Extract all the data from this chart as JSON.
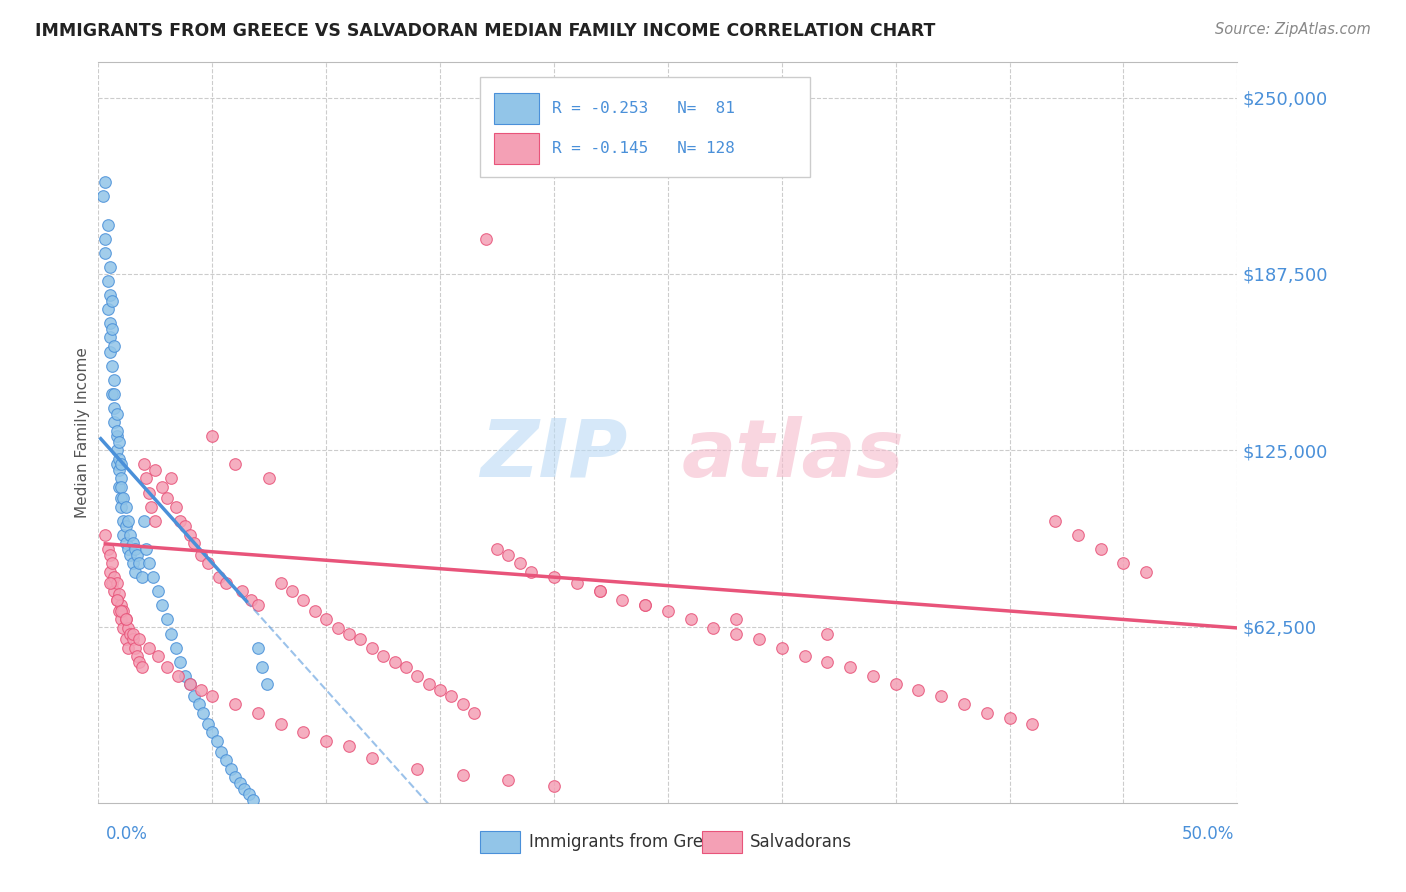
{
  "title": "IMMIGRANTS FROM GREECE VS SALVADORAN MEDIAN FAMILY INCOME CORRELATION CHART",
  "source": "Source: ZipAtlas.com",
  "ylabel": "Median Family Income",
  "ytick_labels": [
    "$62,500",
    "$125,000",
    "$187,500",
    "$250,000"
  ],
  "ytick_values": [
    62500,
    125000,
    187500,
    250000
  ],
  "ymin": 0,
  "ymax": 262500,
  "xmin": 0.0,
  "xmax": 0.5,
  "color_greece": "#92C5E8",
  "color_salvador": "#F4A0B5",
  "color_greece_line": "#4A90D9",
  "color_salvador_line": "#E8547A",
  "title_color": "#333333",
  "greece_N": 81,
  "salvador_N": 128,
  "greece_R": -0.253,
  "salvador_R": -0.145,
  "greece_x": [
    0.002,
    0.003,
    0.003,
    0.003,
    0.004,
    0.004,
    0.004,
    0.005,
    0.005,
    0.005,
    0.005,
    0.005,
    0.006,
    0.006,
    0.006,
    0.006,
    0.007,
    0.007,
    0.007,
    0.007,
    0.007,
    0.008,
    0.008,
    0.008,
    0.008,
    0.008,
    0.009,
    0.009,
    0.009,
    0.009,
    0.01,
    0.01,
    0.01,
    0.01,
    0.01,
    0.011,
    0.011,
    0.011,
    0.012,
    0.012,
    0.012,
    0.013,
    0.013,
    0.014,
    0.014,
    0.015,
    0.015,
    0.016,
    0.016,
    0.017,
    0.018,
    0.019,
    0.02,
    0.021,
    0.022,
    0.024,
    0.026,
    0.028,
    0.03,
    0.032,
    0.034,
    0.036,
    0.038,
    0.04,
    0.042,
    0.044,
    0.046,
    0.048,
    0.05,
    0.052,
    0.054,
    0.056,
    0.058,
    0.06,
    0.062,
    0.064,
    0.066,
    0.068,
    0.07,
    0.072,
    0.074
  ],
  "greece_y": [
    215000,
    220000,
    195000,
    200000,
    185000,
    205000,
    175000,
    190000,
    165000,
    180000,
    170000,
    160000,
    178000,
    155000,
    168000,
    145000,
    162000,
    140000,
    150000,
    135000,
    145000,
    130000,
    138000,
    125000,
    132000,
    120000,
    128000,
    118000,
    122000,
    112000,
    120000,
    115000,
    108000,
    105000,
    112000,
    100000,
    108000,
    95000,
    105000,
    98000,
    92000,
    100000,
    90000,
    95000,
    88000,
    92000,
    85000,
    90000,
    82000,
    88000,
    85000,
    80000,
    100000,
    90000,
    85000,
    80000,
    75000,
    70000,
    65000,
    60000,
    55000,
    50000,
    45000,
    42000,
    38000,
    35000,
    32000,
    28000,
    25000,
    22000,
    18000,
    15000,
    12000,
    9000,
    7000,
    5000,
    3000,
    1000,
    55000,
    48000,
    42000
  ],
  "salvador_x": [
    0.003,
    0.004,
    0.005,
    0.005,
    0.006,
    0.006,
    0.007,
    0.007,
    0.008,
    0.008,
    0.009,
    0.009,
    0.01,
    0.01,
    0.011,
    0.011,
    0.012,
    0.012,
    0.013,
    0.013,
    0.014,
    0.015,
    0.016,
    0.017,
    0.018,
    0.019,
    0.02,
    0.021,
    0.022,
    0.023,
    0.025,
    0.025,
    0.028,
    0.03,
    0.032,
    0.034,
    0.036,
    0.038,
    0.04,
    0.042,
    0.045,
    0.048,
    0.05,
    0.053,
    0.056,
    0.06,
    0.063,
    0.067,
    0.07,
    0.075,
    0.08,
    0.085,
    0.09,
    0.095,
    0.1,
    0.105,
    0.11,
    0.115,
    0.12,
    0.125,
    0.13,
    0.135,
    0.14,
    0.145,
    0.15,
    0.155,
    0.16,
    0.165,
    0.17,
    0.175,
    0.18,
    0.185,
    0.19,
    0.2,
    0.21,
    0.22,
    0.23,
    0.24,
    0.25,
    0.26,
    0.27,
    0.28,
    0.29,
    0.3,
    0.31,
    0.32,
    0.33,
    0.34,
    0.35,
    0.36,
    0.37,
    0.38,
    0.39,
    0.4,
    0.41,
    0.42,
    0.43,
    0.44,
    0.45,
    0.46,
    0.005,
    0.008,
    0.01,
    0.012,
    0.015,
    0.018,
    0.022,
    0.026,
    0.03,
    0.035,
    0.04,
    0.045,
    0.05,
    0.06,
    0.07,
    0.08,
    0.09,
    0.1,
    0.11,
    0.12,
    0.14,
    0.16,
    0.18,
    0.2,
    0.22,
    0.24,
    0.28,
    0.32
  ],
  "salvador_y": [
    95000,
    90000,
    88000,
    82000,
    78000,
    85000,
    75000,
    80000,
    72000,
    78000,
    68000,
    74000,
    65000,
    70000,
    62000,
    68000,
    58000,
    65000,
    55000,
    62000,
    60000,
    58000,
    55000,
    52000,
    50000,
    48000,
    120000,
    115000,
    110000,
    105000,
    100000,
    118000,
    112000,
    108000,
    115000,
    105000,
    100000,
    98000,
    95000,
    92000,
    88000,
    85000,
    130000,
    80000,
    78000,
    120000,
    75000,
    72000,
    70000,
    115000,
    78000,
    75000,
    72000,
    68000,
    65000,
    62000,
    60000,
    58000,
    55000,
    52000,
    50000,
    48000,
    45000,
    42000,
    40000,
    38000,
    35000,
    32000,
    200000,
    90000,
    88000,
    85000,
    82000,
    80000,
    78000,
    75000,
    72000,
    70000,
    68000,
    65000,
    62000,
    60000,
    58000,
    55000,
    52000,
    50000,
    48000,
    45000,
    42000,
    40000,
    38000,
    35000,
    32000,
    30000,
    28000,
    100000,
    95000,
    90000,
    85000,
    82000,
    78000,
    72000,
    68000,
    65000,
    60000,
    58000,
    55000,
    52000,
    48000,
    45000,
    42000,
    40000,
    38000,
    35000,
    32000,
    28000,
    25000,
    22000,
    20000,
    16000,
    12000,
    10000,
    8000,
    6000,
    75000,
    70000,
    65000,
    60000
  ]
}
